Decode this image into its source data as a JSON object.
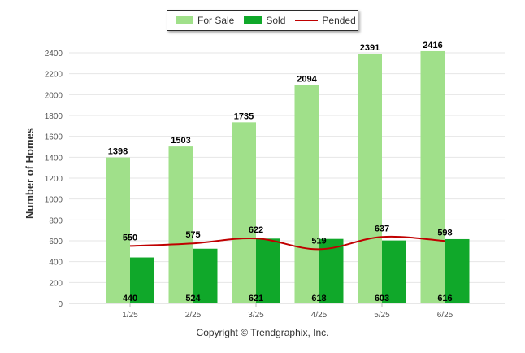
{
  "chart_data": {
    "type": "bar",
    "categories": [
      "1/25",
      "2/25",
      "3/25",
      "4/25",
      "5/25",
      "6/25"
    ],
    "series": [
      {
        "name": "For Sale",
        "type": "bar",
        "color": "#a0e08a",
        "values": [
          1398,
          1503,
          1735,
          2094,
          2391,
          2416
        ]
      },
      {
        "name": "Sold",
        "type": "bar",
        "color": "#10a82a",
        "values": [
          440,
          524,
          621,
          618,
          603,
          616
        ]
      },
      {
        "name": "Pended",
        "type": "line",
        "color": "#c00000",
        "values": [
          550,
          575,
          622,
          519,
          637,
          598
        ]
      }
    ],
    "ylabel": "Number of Homes",
    "xlabel": "",
    "ylim": [
      0,
      2400
    ],
    "yticks": [
      "0",
      "200",
      "400",
      "600",
      "800",
      "1000",
      "1200",
      "1400",
      "1600",
      "1800",
      "2000",
      "2200",
      "2400"
    ],
    "legend_position": "top-center",
    "grid": true
  },
  "footer": "Copyright © Trendgraphix, Inc."
}
